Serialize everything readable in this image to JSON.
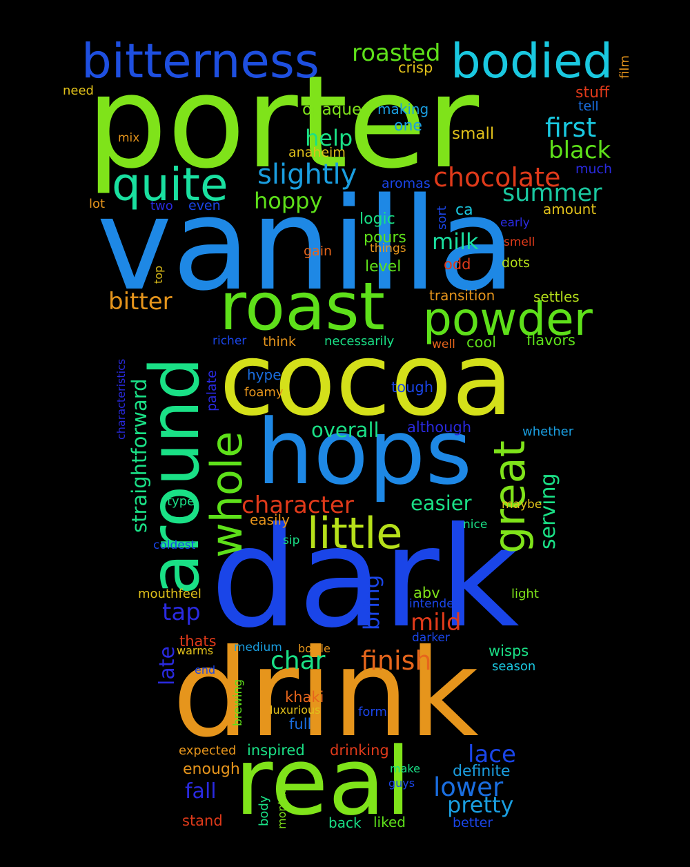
{
  "background": "#000000",
  "words": [
    {
      "text": "porter",
      "color": "#7fe31a"
    },
    {
      "text": "vanilla",
      "color": "#1e88e5"
    },
    {
      "text": "dark",
      "color": "#1a45e8"
    },
    {
      "text": "drink",
      "color": "#e6951c"
    },
    {
      "text": "cocoa",
      "color": "#d4e01a"
    },
    {
      "text": "hops",
      "color": "#1e88e5"
    },
    {
      "text": "real",
      "color": "#7fe31a"
    },
    {
      "text": "roast",
      "color": "#5ee01a"
    },
    {
      "text": "around",
      "color": "#1ae086"
    },
    {
      "text": "bitterness",
      "color": "#1e4fe0"
    },
    {
      "text": "bodied",
      "color": "#1ac8e0"
    },
    {
      "text": "quite",
      "color": "#1ae0a0"
    },
    {
      "text": "powder",
      "color": "#5ee01a"
    },
    {
      "text": "little",
      "color": "#b6e01a"
    },
    {
      "text": "whole",
      "color": "#5ee01a"
    },
    {
      "text": "great",
      "color": "#7fe31a"
    },
    {
      "text": "roasted",
      "color": "#5ee01a"
    },
    {
      "text": "slightly",
      "color": "#1a9ee0"
    },
    {
      "text": "chocolate",
      "color": "#e03a1a"
    },
    {
      "text": "first",
      "color": "#1ac8e0"
    },
    {
      "text": "black",
      "color": "#5ee01a"
    },
    {
      "text": "summer",
      "color": "#1ac8a0"
    },
    {
      "text": "hoppy",
      "color": "#5ee01a"
    },
    {
      "text": "help",
      "color": "#1ae086"
    },
    {
      "text": "milk",
      "color": "#1ae0a0"
    },
    {
      "text": "bitter",
      "color": "#e6951c"
    },
    {
      "text": "character",
      "color": "#e03a1a"
    },
    {
      "text": "finish",
      "color": "#e6651c"
    },
    {
      "text": "char",
      "color": "#1ae086"
    },
    {
      "text": "lower",
      "color": "#1a6ee0"
    },
    {
      "text": "lace",
      "color": "#1a45e8"
    },
    {
      "text": "pretty",
      "color": "#1a9ee0"
    },
    {
      "text": "straightforward",
      "color": "#1ae086"
    },
    {
      "text": "serving",
      "color": "#1ae086"
    },
    {
      "text": "overall",
      "color": "#1ae086"
    },
    {
      "text": "easier",
      "color": "#1ae086"
    },
    {
      "text": "mild",
      "color": "#e03a1a"
    },
    {
      "text": "tap",
      "color": "#2a2ae0"
    },
    {
      "text": "bring",
      "color": "#1a45e8"
    },
    {
      "text": "fall",
      "color": "#2a2ae0"
    },
    {
      "text": "late",
      "color": "#2a2ae0"
    },
    {
      "text": "crisp",
      "color": "#e0c01a"
    },
    {
      "text": "opaque",
      "color": "#7fe31a"
    },
    {
      "text": "making",
      "color": "#1a9ee0"
    },
    {
      "text": "one",
      "color": "#1a9ee0"
    },
    {
      "text": "small",
      "color": "#e0c01a"
    },
    {
      "text": "stuff",
      "color": "#e03a1a"
    },
    {
      "text": "tell",
      "color": "#1a6ee0"
    },
    {
      "text": "need",
      "color": "#e0c01a"
    },
    {
      "text": "film",
      "color": "#e6951c"
    },
    {
      "text": "mix",
      "color": "#e6951c"
    },
    {
      "text": "anaheim",
      "color": "#e0c01a"
    },
    {
      "text": "much",
      "color": "#2a2ae0"
    },
    {
      "text": "aromas",
      "color": "#1a45e8"
    },
    {
      "text": "lot",
      "color": "#e6951c"
    },
    {
      "text": "two",
      "color": "#2a2ae0"
    },
    {
      "text": "even",
      "color": "#1a45e8"
    },
    {
      "text": "logic",
      "color": "#1ae086"
    },
    {
      "text": "sort",
      "color": "#1a45e8"
    },
    {
      "text": "ca",
      "color": "#1ac8e0"
    },
    {
      "text": "amount",
      "color": "#e0c01a"
    },
    {
      "text": "early",
      "color": "#2a2ae0"
    },
    {
      "text": "pours",
      "color": "#5ee01a"
    },
    {
      "text": "things",
      "color": "#e6951c"
    },
    {
      "text": "smell",
      "color": "#e03a1a"
    },
    {
      "text": "gain",
      "color": "#e6651c"
    },
    {
      "text": "odd",
      "color": "#e03a1a"
    },
    {
      "text": "dots",
      "color": "#b6e01a"
    },
    {
      "text": "level",
      "color": "#5ee01a"
    },
    {
      "text": "top",
      "color": "#e0c01a"
    },
    {
      "text": "transition",
      "color": "#e6951c"
    },
    {
      "text": "settles",
      "color": "#b6e01a"
    },
    {
      "text": "richer",
      "color": "#1a45e8"
    },
    {
      "text": "think",
      "color": "#e6951c"
    },
    {
      "text": "necessarily",
      "color": "#1ae086"
    },
    {
      "text": "well",
      "color": "#e6651c"
    },
    {
      "text": "cool",
      "color": "#5ee01a"
    },
    {
      "text": "flavors",
      "color": "#5ee01a"
    },
    {
      "text": "characteristics",
      "color": "#2a2ae0"
    },
    {
      "text": "palate",
      "color": "#2a2ae0"
    },
    {
      "text": "hype",
      "color": "#1a6ee0"
    },
    {
      "text": "foamy",
      "color": "#e6951c"
    },
    {
      "text": "tough",
      "color": "#1a45e8"
    },
    {
      "text": "although",
      "color": "#2a2ae0"
    },
    {
      "text": "whether",
      "color": "#1a9ee0"
    },
    {
      "text": "type",
      "color": "#1ae086"
    },
    {
      "text": "easily",
      "color": "#e6951c"
    },
    {
      "text": "maybe",
      "color": "#e0c01a"
    },
    {
      "text": "nice",
      "color": "#1ae086"
    },
    {
      "text": "coldest",
      "color": "#1a45e8"
    },
    {
      "text": "sip",
      "color": "#1ae086"
    },
    {
      "text": "mouthfeel",
      "color": "#e0c01a"
    },
    {
      "text": "abv",
      "color": "#7fe31a"
    },
    {
      "text": "light",
      "color": "#7fe31a"
    },
    {
      "text": "intended",
      "color": "#1a45e8"
    },
    {
      "text": "thats",
      "color": "#e03a1a"
    },
    {
      "text": "darker",
      "color": "#1a45e8"
    },
    {
      "text": "warms",
      "color": "#e0c01a"
    },
    {
      "text": "medium",
      "color": "#1a9ee0"
    },
    {
      "text": "bottle",
      "color": "#e6951c"
    },
    {
      "text": "wisps",
      "color": "#1ae086"
    },
    {
      "text": "end",
      "color": "#1a45e8"
    },
    {
      "text": "brewing",
      "color": "#5ee01a"
    },
    {
      "text": "season",
      "color": "#1ac8e0"
    },
    {
      "text": "khaki",
      "color": "#e6651c"
    },
    {
      "text": "luxurious",
      "color": "#e0c01a"
    },
    {
      "text": "form",
      "color": "#1a45e8"
    },
    {
      "text": "full",
      "color": "#1a6ee0"
    },
    {
      "text": "expected",
      "color": "#e6951c"
    },
    {
      "text": "inspired",
      "color": "#1ae086"
    },
    {
      "text": "drinking",
      "color": "#e03a1a"
    },
    {
      "text": "enough",
      "color": "#e6951c"
    },
    {
      "text": "make",
      "color": "#1ae086"
    },
    {
      "text": "definite",
      "color": "#1a9ee0"
    },
    {
      "text": "guys",
      "color": "#1a45e8"
    },
    {
      "text": "body",
      "color": "#1ae086"
    },
    {
      "text": "months",
      "color": "#7fe31a"
    },
    {
      "text": "stand",
      "color": "#e03a1a"
    },
    {
      "text": "back",
      "color": "#1ae086"
    },
    {
      "text": "liked",
      "color": "#5ee01a"
    },
    {
      "text": "better",
      "color": "#1a45e8"
    }
  ]
}
